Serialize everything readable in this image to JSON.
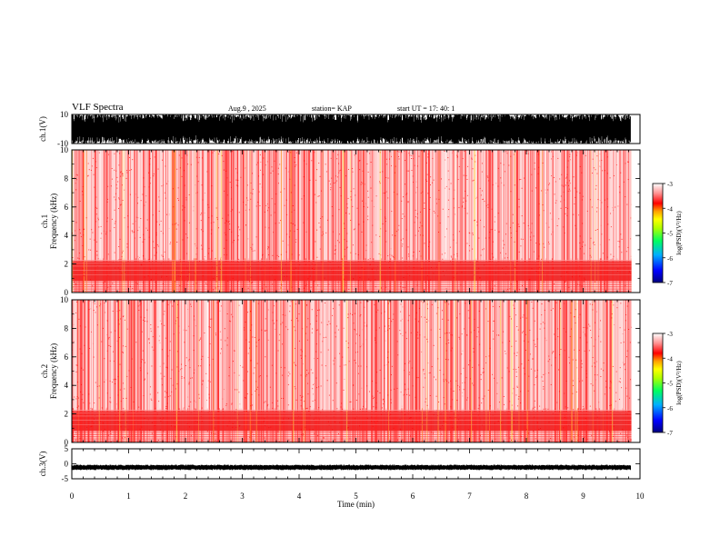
{
  "header": {
    "title": "VLF Spectra",
    "date": "Aug.9  , 2025",
    "station": "station= KAP",
    "start_ut": "start  UT  =   17: 40: 1"
  },
  "chart_data": [
    {
      "type": "line",
      "name": "ch1-waveform",
      "ylabel": "ch.1(V)",
      "ylim": [
        -10,
        10
      ],
      "yticks": [
        "10",
        "-10"
      ],
      "description": "saturated waveform between -10 and 10 V"
    },
    {
      "type": "heatmap",
      "name": "ch1-spectrogram",
      "ylabel": "ch.1\nFrequency  (kHz)",
      "ylim": [
        0,
        10
      ],
      "yticks": [
        "0",
        "2",
        "4",
        "6",
        "8",
        "10"
      ],
      "band_khz": [
        0.8,
        2.2
      ],
      "colorbar": {
        "label": "log(PSD)(V²/Hz)",
        "ticks": [
          "-3",
          "-4",
          "-5",
          "-6",
          "-7"
        ],
        "range": [
          -7,
          -3
        ]
      }
    },
    {
      "type": "heatmap",
      "name": "ch2-spectrogram",
      "ylabel": "ch.2\nFrequency  (kHz)",
      "ylim": [
        0,
        10
      ],
      "yticks": [
        "0",
        "2",
        "4",
        "6",
        "8",
        "10"
      ],
      "band_khz": [
        0.8,
        2.2
      ],
      "colorbar": {
        "label": "log(PSD)(V²/Hz)",
        "ticks": [
          "-3",
          "-4",
          "-5",
          "-6",
          "-7"
        ],
        "range": [
          -7,
          -3
        ]
      }
    },
    {
      "type": "line",
      "name": "ch3-waveform",
      "ylabel": "ch.3(V)",
      "ylim": [
        -5,
        5
      ],
      "yticks": [
        "5",
        "0",
        "-5"
      ],
      "level": -1.2
    }
  ],
  "xaxis": {
    "label": "Time  (min)",
    "range": [
      0,
      10
    ],
    "ticks": [
      "0",
      "1",
      "2",
      "3",
      "4",
      "5",
      "6",
      "7",
      "8",
      "9",
      "10"
    ]
  },
  "colors": {
    "colormap": [
      "#00007f",
      "#0000ff",
      "#00b0ff",
      "#00ff60",
      "#b0ff00",
      "#ffff00",
      "#ffa000",
      "#ff0000",
      "#ffffff"
    ]
  }
}
